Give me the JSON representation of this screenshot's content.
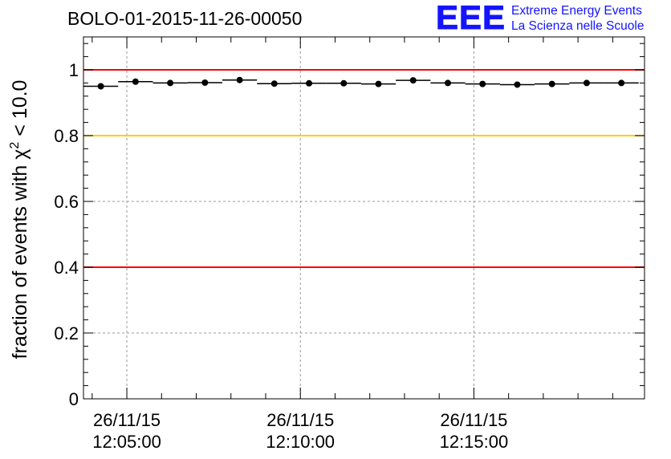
{
  "header": {
    "run_title": "BOLO-01-2015-11-26-00050",
    "logo_letters": "EEE",
    "logo_line1": "Extreme Energy Events",
    "logo_line2": "La Scienza nelle Scuole"
  },
  "colors": {
    "upper_limit": "#ff0000",
    "warning": "#ffcc00",
    "lower_limit": "#ff0000",
    "markers": "#000000",
    "logo": "#1414ff"
  },
  "chart_data": {
    "type": "scatter",
    "title": "BOLO-01-2015-11-26-00050",
    "ylabel_prefix": "fraction of events with ",
    "ylabel_symbol": "χ",
    "ylabel_sup": "2",
    "ylabel_suffix": " < 10.0",
    "xlabel": "",
    "ylim": [
      0,
      1.1
    ],
    "yticks": [
      0,
      0.2,
      0.4,
      0.6,
      0.8,
      1
    ],
    "ytick_labels": [
      "0",
      "0.2",
      "0.4",
      "0.6",
      "0.8",
      "1"
    ],
    "xlim": [
      "12:03:45",
      "12:19:55"
    ],
    "xticks": [
      {
        "t": "12:05:00",
        "date": "26/11/15",
        "time": "12:05:00"
      },
      {
        "t": "12:10:00",
        "date": "26/11/15",
        "time": "12:10:00"
      },
      {
        "t": "12:15:00",
        "date": "26/11/15",
        "time": "12:15:00"
      }
    ],
    "grid": true,
    "reference_lines": [
      {
        "y": 1.0,
        "color": "#ff0000"
      },
      {
        "y": 0.8,
        "color": "#ffcc00"
      },
      {
        "y": 0.4,
        "color": "#ff0000"
      }
    ],
    "series": [
      {
        "x": [
          "12:04:15",
          "12:05:15",
          "12:06:15",
          "12:07:15",
          "12:08:15",
          "12:09:15",
          "12:10:15",
          "12:11:15",
          "12:12:15",
          "12:13:15",
          "12:14:15",
          "12:15:15",
          "12:16:15",
          "12:17:15",
          "12:18:15",
          "12:19:15"
        ],
        "y": [
          0.95,
          0.964,
          0.96,
          0.961,
          0.969,
          0.958,
          0.959,
          0.959,
          0.957,
          0.968,
          0.96,
          0.957,
          0.955,
          0.957,
          0.96,
          0.96
        ],
        "bin_width_seconds": 60
      }
    ]
  }
}
